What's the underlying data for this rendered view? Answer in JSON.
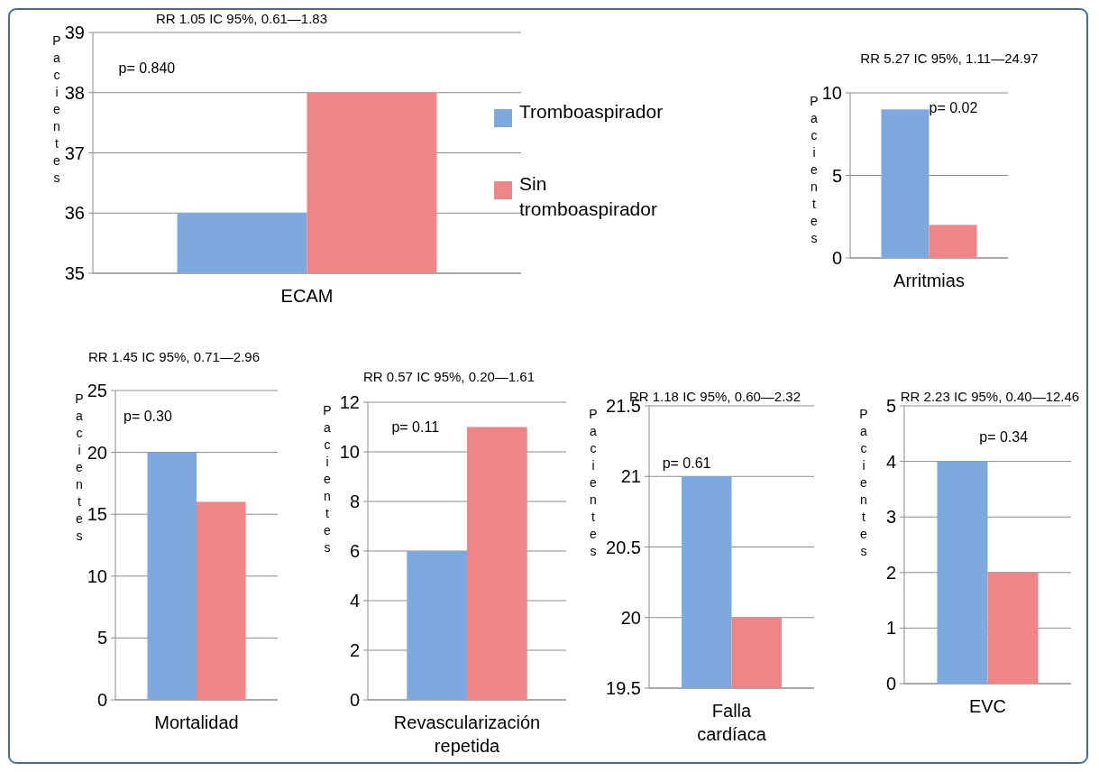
{
  "chart_data": [
    {
      "type": "bar",
      "title": "RR 1.05 IC 95%, 0.61—1.83",
      "ylabel": "Pacientes",
      "categories": [
        "ECAM"
      ],
      "series": [
        {
          "name": "Tromboaspirador",
          "color": "#7ea9de",
          "values": [
            36
          ]
        },
        {
          "name": "Sin tromboaspirador",
          "color": "#ee8587",
          "values": [
            38
          ]
        }
      ],
      "ylim": [
        35,
        39
      ],
      "yticks": [
        35,
        36,
        37,
        38,
        39
      ],
      "grid": "y",
      "legend": "right",
      "annotations": [
        "p= 0.840"
      ]
    },
    {
      "type": "bar",
      "title": "RR 5.27 IC 95%, 1.11—24.97",
      "ylabel": "Pacientes",
      "categories": [
        "Arritmias"
      ],
      "series": [
        {
          "color": "#7ea9de",
          "values": [
            9
          ]
        },
        {
          "color": "#ee8587",
          "values": [
            2
          ]
        }
      ],
      "ylim": [
        0,
        10
      ],
      "yticks": [
        0,
        5,
        10
      ],
      "grid": "y",
      "annotations": [
        "p= 0.02"
      ]
    },
    {
      "type": "bar",
      "title": "RR 1.45 IC 95%, 0.71—2.96",
      "ylabel": "Pacientes",
      "categories": [
        "Mortalidad"
      ],
      "series": [
        {
          "color": "#7ea9de",
          "values": [
            20
          ]
        },
        {
          "color": "#ee8587",
          "values": [
            16
          ]
        }
      ],
      "ylim": [
        0,
        25
      ],
      "yticks": [
        0,
        5,
        10,
        15,
        20,
        25
      ],
      "grid": "y",
      "annotations": [
        "p= 0.30"
      ]
    },
    {
      "type": "bar",
      "title": "RR 0.57 IC 95%, 0.20—1.61",
      "ylabel": "Pacientes",
      "categories": [
        "Revascularización repetida"
      ],
      "series": [
        {
          "color": "#7ea9de",
          "values": [
            6
          ]
        },
        {
          "color": "#ee8587",
          "values": [
            11
          ]
        }
      ],
      "ylim": [
        0,
        12
      ],
      "yticks": [
        0,
        2,
        4,
        6,
        8,
        10,
        12
      ],
      "grid": "y",
      "annotations": [
        "p= 0.11"
      ]
    },
    {
      "type": "bar",
      "title": "RR 1.18 IC 95%, 0.60—2.32",
      "ylabel": "Pacientes",
      "categories": [
        "Falla cardíaca"
      ],
      "series": [
        {
          "color": "#7ea9de",
          "values": [
            21
          ]
        },
        {
          "color": "#ee8587",
          "values": [
            20
          ]
        }
      ],
      "ylim": [
        19.5,
        21.5
      ],
      "yticks": [
        19.5,
        20,
        20.5,
        21,
        21.5
      ],
      "grid": "y",
      "annotations": [
        "p= 0.61"
      ]
    },
    {
      "type": "bar",
      "title": "RR 2.23 IC 95%, 0.40—12.46",
      "ylabel": "Pacientes",
      "categories": [
        "EVC"
      ],
      "series": [
        {
          "color": "#7ea9de",
          "values": [
            4
          ]
        },
        {
          "color": "#ee8587",
          "values": [
            2
          ]
        }
      ],
      "ylim": [
        0,
        5
      ],
      "yticks": [
        0,
        1,
        2,
        3,
        4,
        5
      ],
      "grid": "y",
      "annotations": [
        "p= 0.34"
      ]
    }
  ]
}
